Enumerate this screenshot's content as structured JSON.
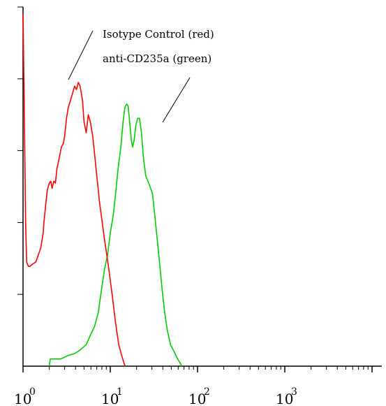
{
  "chart_data": {
    "type": "line",
    "title": "",
    "xlabel": "",
    "ylabel": "",
    "x_scale": "log",
    "xlim": [
      1,
      10000
    ],
    "ylim": [
      0,
      100
    ],
    "grid": false,
    "x_tick_labels": [
      {
        "base": "10",
        "exp": "0"
      },
      {
        "base": "10",
        "exp": "1"
      },
      {
        "base": "10",
        "exp": "2"
      },
      {
        "base": "10",
        "exp": "3"
      }
    ],
    "annotations": [
      {
        "text": "Isotype Control (red)"
      },
      {
        "text": "anti-CD235a (green)"
      }
    ],
    "series": [
      {
        "color": "#ff0000",
        "points": [
          [
            1.0,
            98
          ],
          [
            1.03,
            75
          ],
          [
            1.07,
            40
          ],
          [
            1.1,
            29
          ],
          [
            1.15,
            27.8
          ],
          [
            1.2,
            27.8
          ],
          [
            1.3,
            28.5
          ],
          [
            1.4,
            29
          ],
          [
            1.5,
            31
          ],
          [
            1.6,
            33
          ],
          [
            1.7,
            37
          ],
          [
            1.75,
            41
          ],
          [
            1.82,
            45
          ],
          [
            1.9,
            49
          ],
          [
            2.0,
            51
          ],
          [
            2.08,
            51.5
          ],
          [
            2.15,
            49.5
          ],
          [
            2.25,
            51.5
          ],
          [
            2.35,
            51
          ],
          [
            2.45,
            55
          ],
          [
            2.6,
            58
          ],
          [
            2.75,
            61
          ],
          [
            2.9,
            62
          ],
          [
            3.0,
            64
          ],
          [
            3.15,
            69
          ],
          [
            3.3,
            72
          ],
          [
            3.5,
            74
          ],
          [
            3.7,
            76
          ],
          [
            3.9,
            78
          ],
          [
            4.1,
            77
          ],
          [
            4.3,
            79
          ],
          [
            4.5,
            78
          ],
          [
            4.8,
            74
          ],
          [
            5.0,
            68
          ],
          [
            5.3,
            65
          ],
          [
            5.6,
            70
          ],
          [
            5.9,
            68
          ],
          [
            6.3,
            64
          ],
          [
            6.8,
            56
          ],
          [
            7.5,
            46
          ],
          [
            8.5,
            36
          ],
          [
            9.5,
            28
          ],
          [
            10.5,
            20
          ],
          [
            11.5,
            12
          ],
          [
            12.5,
            6
          ],
          [
            13.5,
            3
          ],
          [
            14.3,
            1
          ],
          [
            14.8,
            0
          ]
        ]
      },
      {
        "color": "#00cc00",
        "points": [
          [
            2.0,
            0
          ],
          [
            2.05,
            2
          ],
          [
            2.3,
            2
          ],
          [
            2.7,
            2
          ],
          [
            3.3,
            3
          ],
          [
            3.9,
            3.5
          ],
          [
            4.5,
            4.5
          ],
          [
            5.3,
            6
          ],
          [
            6.0,
            9
          ],
          [
            6.6,
            11
          ],
          [
            7.3,
            15
          ],
          [
            8.0,
            22
          ],
          [
            8.6,
            27
          ],
          [
            9.3,
            31
          ],
          [
            10.0,
            37
          ],
          [
            10.8,
            42
          ],
          [
            11.5,
            48
          ],
          [
            12.3,
            55
          ],
          [
            13.2,
            61
          ],
          [
            14.0,
            68
          ],
          [
            14.7,
            72
          ],
          [
            15.4,
            73
          ],
          [
            16.0,
            72.5
          ],
          [
            16.7,
            68
          ],
          [
            17.4,
            63
          ],
          [
            18.0,
            61
          ],
          [
            18.8,
            63
          ],
          [
            19.6,
            67
          ],
          [
            20.6,
            69
          ],
          [
            21.6,
            69
          ],
          [
            22.8,
            65
          ],
          [
            24.0,
            58
          ],
          [
            25.5,
            53
          ],
          [
            27.0,
            51.5
          ],
          [
            28.5,
            50
          ],
          [
            30.5,
            48
          ],
          [
            33.0,
            40
          ],
          [
            36.0,
            31
          ],
          [
            39.0,
            22
          ],
          [
            42.0,
            15
          ],
          [
            45.0,
            10
          ],
          [
            49.0,
            6
          ],
          [
            54.0,
            4
          ],
          [
            59.0,
            2
          ],
          [
            63.0,
            1
          ],
          [
            66.0,
            0
          ]
        ]
      }
    ]
  }
}
